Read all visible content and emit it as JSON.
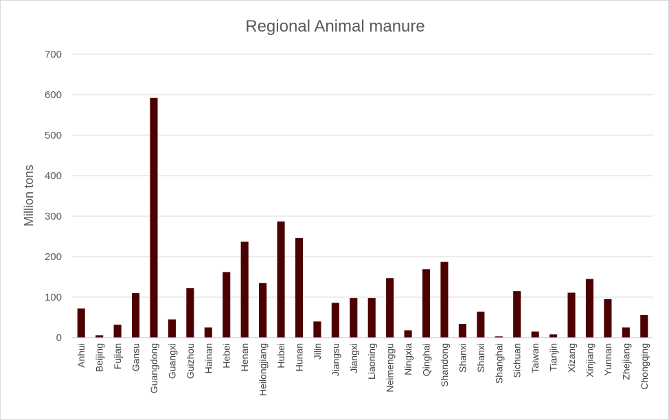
{
  "chart_data": {
    "type": "bar",
    "title": "Regional Animal manure",
    "xlabel": "",
    "ylabel": "Million tons",
    "ylim": [
      0,
      700
    ],
    "yticks": [
      0,
      100,
      200,
      300,
      400,
      500,
      600,
      700
    ],
    "grid": true,
    "legend": "none",
    "bar_color": "#4d0000",
    "categories": [
      "Anhui",
      "Beijing",
      "Fujian",
      "Gansu",
      "Guangdong",
      "Guangxi",
      "Guizhou",
      "Hainan",
      "Hebei",
      "Henan",
      "Heilongjiang",
      "Hubei",
      "Hunan",
      "Jilin",
      "Jiangsu",
      "Jiangxi",
      "Liaoning",
      "Neimenggu",
      "Ningxia",
      "Qinghai",
      "Shandong",
      "Shanxi",
      "Shanxi",
      "Shanghai",
      "Sichuan",
      "Taiwan",
      "Tianjin",
      "Xizang",
      "Xinjiang",
      "Yunnan",
      "Zhejiang",
      "Chongqing"
    ],
    "values": [
      72,
      6,
      32,
      110,
      592,
      45,
      122,
      25,
      162,
      237,
      135,
      287,
      246,
      40,
      86,
      98,
      98,
      147,
      18,
      169,
      187,
      34,
      64,
      3,
      115,
      15,
      8,
      111,
      145,
      95,
      25,
      56
    ]
  }
}
